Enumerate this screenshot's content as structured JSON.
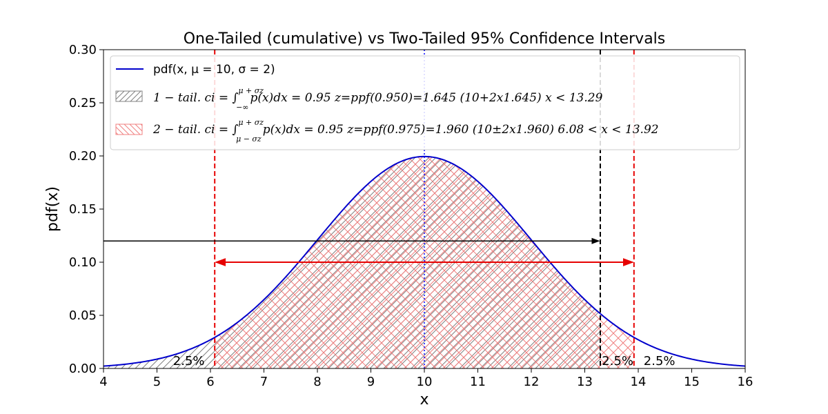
{
  "chart_data": {
    "type": "line",
    "title": "One-Tailed (cumulative) vs Two-Tailed 95% Confidence Intervals",
    "xlabel": "x",
    "ylabel": "pdf(x)",
    "xlim": [
      4,
      16
    ],
    "ylim": [
      0,
      0.3
    ],
    "xticks": [
      "4",
      "5",
      "6",
      "7",
      "8",
      "9",
      "10",
      "11",
      "12",
      "13",
      "14",
      "15",
      "16"
    ],
    "yticks": [
      "0.00",
      "0.05",
      "0.10",
      "0.15",
      "0.20",
      "0.25",
      "0.30"
    ],
    "grid": false,
    "legend_position": "top-left",
    "distribution": {
      "mu": 10,
      "sigma": 2
    },
    "series": [
      {
        "name": "pdf(x, μ = 10, σ = 2)",
        "color": "#0000cc",
        "style": "solid"
      }
    ],
    "regions": [
      {
        "kind": "one-tailed",
        "label_main": "1 − tail.  ci = ∫",
        "label_sup": "μ + σz",
        "label_sub": "−∞",
        "label_tail": "p(x)dx = 0.95 z=ppf(0.950)=1.645  (10+2x1.645)  x < 13.29",
        "from": 4,
        "to": 13.29,
        "hatch_color": "#808080",
        "bound_color": "#000000",
        "arrow_y": 0.12
      },
      {
        "kind": "two-tailed",
        "label_main": "2 − tail.  ci = ∫",
        "label_sup": "μ + σz",
        "label_sub": "μ − σz",
        "label_tail": "p(x)dx = 0.95 z=ppf(0.975)=1.960 (10±2x1.960) 6.08 < x  < 13.92",
        "from": 6.08,
        "to": 13.92,
        "hatch_color": "#f08080",
        "bound_color": "#e60000",
        "arrow_y": 0.1
      }
    ],
    "mean_line": {
      "x": 10,
      "color": "#0000ff",
      "style": "dotted"
    },
    "annotations": [
      {
        "text": "2.5%",
        "x": 5.3,
        "y": 0.002
      },
      {
        "text": "2.5%",
        "x": 13.32,
        "y": 0.002
      },
      {
        "text": "2.5%",
        "x": 14.1,
        "y": 0.002
      }
    ]
  }
}
